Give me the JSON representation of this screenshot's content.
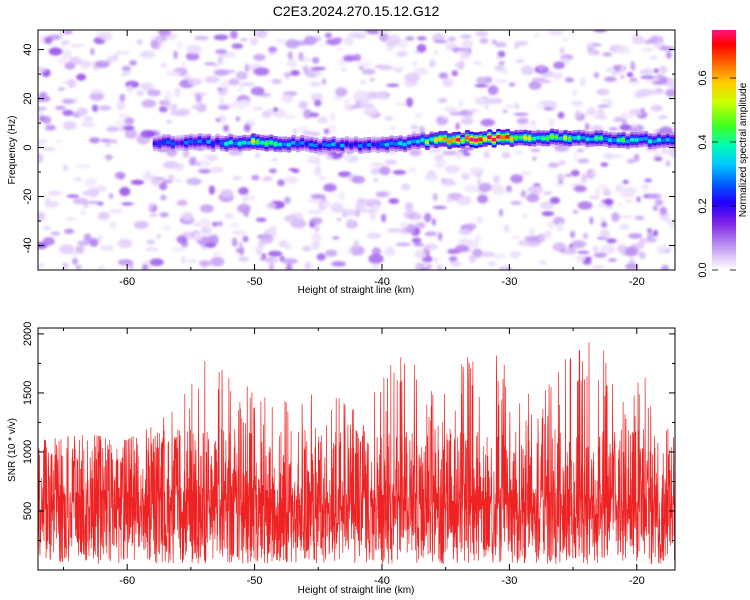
{
  "title": "C2E3.2024.270.15.12.G12",
  "chart_data": [
    {
      "type": "heatmap",
      "title": "C2E3.2024.270.15.12.G12",
      "xlabel": "Height of straight line (km)",
      "ylabel": "Frequency (Hz)",
      "xlim": [
        -67,
        -17
      ],
      "ylim": [
        -50,
        48
      ],
      "x_ticks": [
        -60,
        -50,
        -40,
        -30,
        -20
      ],
      "y_ticks": [
        -40,
        -20,
        0,
        20,
        40
      ],
      "colorbar": {
        "label": "Normalized spectral amplitude",
        "range": [
          0,
          0.75
        ],
        "ticks": [
          0.0,
          0.2,
          0.4,
          0.6
        ],
        "colormap": [
          "#ffffff",
          "#d9b8f5",
          "#8a2be2",
          "#5a00d9",
          "#0000ff",
          "#00c8ff",
          "#00ffa0",
          "#66ff00",
          "#ffff00",
          "#ff8c00",
          "#ff0000",
          "#ff1493"
        ]
      },
      "signal_band": {
        "x_start": -58,
        "x_end": -17,
        "center_frequency": [
          [
            -58,
            2
          ],
          [
            -50,
            2
          ],
          [
            -45,
            1
          ],
          [
            -40,
            1
          ],
          [
            -36,
            3
          ],
          [
            -30,
            4
          ],
          [
            -27,
            4
          ],
          [
            -20,
            3
          ],
          [
            -17,
            3
          ]
        ],
        "peak_amplitude": [
          [
            -58,
            0.25
          ],
          [
            -53,
            0.3
          ],
          [
            -50,
            0.55
          ],
          [
            -46,
            0.32
          ],
          [
            -41,
            0.28
          ],
          [
            -38,
            0.35
          ],
          [
            -34,
            0.72
          ],
          [
            -31,
            0.75
          ],
          [
            -28,
            0.5
          ],
          [
            -24,
            0.45
          ],
          [
            -20,
            0.4
          ],
          [
            -17,
            0.35
          ]
        ]
      },
      "background_noise_amplitude": [
        0.02,
        0.1
      ]
    },
    {
      "type": "line",
      "xlabel": "Height of straight line (km)",
      "ylabel": "SNR (10 * v/v)",
      "xlim": [
        -67,
        -17
      ],
      "ylim": [
        0,
        2050
      ],
      "x_ticks": [
        -60,
        -50,
        -40,
        -30,
        -20
      ],
      "y_ticks": [
        500,
        1000,
        1500,
        2000
      ],
      "color": "#ee2222",
      "envelope": {
        "x": [
          -67,
          -63,
          -60,
          -56,
          -53,
          -51,
          -48,
          -45,
          -42,
          -39,
          -37,
          -35,
          -33,
          -31,
          -29,
          -27,
          -25,
          -23,
          -21,
          -19,
          -17
        ],
        "upper": [
          1100,
          1150,
          1100,
          1400,
          2000,
          1600,
          1500,
          1550,
          1400,
          1900,
          1700,
          1500,
          1900,
          1850,
          1500,
          1650,
          1850,
          2050,
          1450,
          1750,
          1200
        ]
      },
      "median_level": 500
    }
  ]
}
